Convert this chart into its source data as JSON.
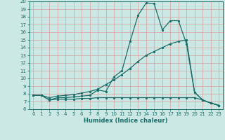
{
  "xlabel": "Humidex (Indice chaleur)",
  "bg_color": "#cce8e4",
  "line_color": "#1a6e6a",
  "grid_color": "#b0d8d4",
  "xlim": [
    -0.5,
    23.5
  ],
  "ylim": [
    6,
    20
  ],
  "xticks": [
    0,
    1,
    2,
    3,
    4,
    5,
    6,
    7,
    8,
    9,
    10,
    11,
    12,
    13,
    14,
    15,
    16,
    17,
    18,
    19,
    20,
    21,
    22,
    23
  ],
  "yticks": [
    6,
    7,
    8,
    9,
    10,
    11,
    12,
    13,
    14,
    15,
    16,
    17,
    18,
    19,
    20
  ],
  "line1_x": [
    0,
    1,
    2,
    3,
    4,
    5,
    6,
    7,
    8,
    9,
    10,
    11,
    12,
    13,
    14,
    15,
    16,
    17,
    18,
    19,
    20,
    21,
    22,
    23
  ],
  "line1_y": [
    7.8,
    7.8,
    7.2,
    7.5,
    7.5,
    7.6,
    7.7,
    7.8,
    8.5,
    8.3,
    10.2,
    11.0,
    14.8,
    18.2,
    19.8,
    19.7,
    16.3,
    17.5,
    17.5,
    14.5,
    8.2,
    7.2,
    6.8,
    6.5
  ],
  "line2_x": [
    0,
    1,
    2,
    3,
    4,
    5,
    6,
    7,
    8,
    9,
    10,
    11,
    12,
    13,
    14,
    15,
    16,
    17,
    18,
    19,
    20,
    21,
    22,
    23
  ],
  "line2_y": [
    7.8,
    7.8,
    7.5,
    7.7,
    7.8,
    7.9,
    8.1,
    8.3,
    8.6,
    9.2,
    9.8,
    10.5,
    11.3,
    12.2,
    13.0,
    13.5,
    14.0,
    14.5,
    14.8,
    15.0,
    8.2,
    7.2,
    6.8,
    6.5
  ],
  "line3_x": [
    0,
    1,
    2,
    3,
    4,
    5,
    6,
    7,
    8,
    9,
    10,
    11,
    12,
    13,
    14,
    15,
    16,
    17,
    18,
    19,
    20,
    21,
    22,
    23
  ],
  "line3_y": [
    7.8,
    7.8,
    7.2,
    7.3,
    7.3,
    7.3,
    7.4,
    7.4,
    7.5,
    7.5,
    7.5,
    7.5,
    7.5,
    7.5,
    7.5,
    7.5,
    7.5,
    7.5,
    7.5,
    7.5,
    7.5,
    7.2,
    6.8,
    6.5
  ],
  "marker": ".",
  "markersize": 3,
  "linewidth": 0.9
}
